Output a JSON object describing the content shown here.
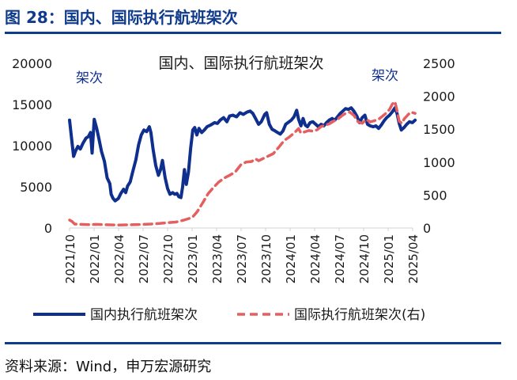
{
  "page": {
    "figure_title": "图 28：国内、国际执行航班架次",
    "source": "资料来源：Wind，申万宏源研究"
  },
  "colors": {
    "brand": "#0f3b8c",
    "domestic_series": "#0f2f8f",
    "international_series": "#e46060",
    "axis": "#d0d0d0"
  },
  "chart_data": {
    "type": "line",
    "title": "国内、国际执行航班架次",
    "left_unit_label": "架次",
    "right_unit_label": "架次",
    "x_ticks": [
      "2021/10",
      "2022/01",
      "2022/04",
      "2022/07",
      "2022/10",
      "2023/01",
      "2023/04",
      "2023/07",
      "2023/10",
      "2024/01",
      "2024/04",
      "2024/07",
      "2024/10",
      "2025/01",
      "2025/04"
    ],
    "y_left": {
      "ylim": [
        0,
        20000
      ],
      "ticks": [
        "0",
        "5000",
        "10000",
        "15000",
        "20000"
      ]
    },
    "y_right": {
      "ylim": [
        0,
        2500
      ],
      "ticks": [
        "0",
        "500",
        "1000",
        "1500",
        "2000",
        "2500"
      ]
    },
    "grid": false,
    "legend_position": "bottom",
    "series": [
      {
        "name": "国内执行航班架次",
        "axis": "left",
        "style": "solid",
        "points": [
          [
            "2021-10-01",
            13100
          ],
          [
            "2021-10-08",
            11000
          ],
          [
            "2021-10-16",
            8700
          ],
          [
            "2021-10-24",
            9400
          ],
          [
            "2021-11-01",
            9900
          ],
          [
            "2021-11-10",
            9600
          ],
          [
            "2021-11-20",
            10300
          ],
          [
            "2021-12-01",
            10900
          ],
          [
            "2021-12-10",
            11100
          ],
          [
            "2021-12-18",
            11600
          ],
          [
            "2021-12-24",
            9100
          ],
          [
            "2022-01-01",
            13200
          ],
          [
            "2022-01-05",
            12700
          ],
          [
            "2022-01-10",
            12100
          ],
          [
            "2022-01-18",
            10900
          ],
          [
            "2022-01-28",
            9300
          ],
          [
            "2022-02-08",
            8100
          ],
          [
            "2022-02-18",
            6100
          ],
          [
            "2022-02-28",
            5400
          ],
          [
            "2022-03-05",
            4100
          ],
          [
            "2022-03-12",
            3600
          ],
          [
            "2022-03-20",
            3300
          ],
          [
            "2022-04-01",
            3600
          ],
          [
            "2022-04-10",
            4200
          ],
          [
            "2022-04-20",
            4700
          ],
          [
            "2022-04-28",
            4300
          ],
          [
            "2022-05-05",
            5100
          ],
          [
            "2022-05-15",
            5600
          ],
          [
            "2022-05-25",
            6900
          ],
          [
            "2022-06-05",
            8300
          ],
          [
            "2022-06-15",
            10100
          ],
          [
            "2022-06-25",
            11300
          ],
          [
            "2022-07-05",
            11900
          ],
          [
            "2022-07-15",
            11700
          ],
          [
            "2022-07-25",
            12300
          ],
          [
            "2022-07-31",
            11600
          ],
          [
            "2022-08-08",
            9600
          ],
          [
            "2022-08-18",
            7600
          ],
          [
            "2022-08-28",
            6400
          ],
          [
            "2022-09-05",
            7100
          ],
          [
            "2022-09-12",
            8200
          ],
          [
            "2022-09-22",
            6100
          ],
          [
            "2022-10-01",
            4800
          ],
          [
            "2022-10-10",
            4100
          ],
          [
            "2022-10-20",
            4300
          ],
          [
            "2022-10-28",
            4100
          ],
          [
            "2022-11-05",
            4200
          ],
          [
            "2022-11-12",
            3800
          ],
          [
            "2022-11-20",
            3700
          ],
          [
            "2022-11-26",
            5000
          ],
          [
            "2022-12-03",
            7100
          ],
          [
            "2022-12-10",
            5300
          ],
          [
            "2022-12-18",
            6800
          ],
          [
            "2022-12-26",
            9700
          ],
          [
            "2023-01-03",
            11900
          ],
          [
            "2023-01-10",
            12200
          ],
          [
            "2023-01-18",
            11300
          ],
          [
            "2023-01-26",
            12100
          ],
          [
            "2023-02-05",
            11600
          ],
          [
            "2023-02-15",
            11900
          ],
          [
            "2023-02-25",
            12300
          ],
          [
            "2023-03-10",
            12500
          ],
          [
            "2023-03-25",
            12800
          ],
          [
            "2023-04-05",
            12700
          ],
          [
            "2023-04-15",
            13100
          ],
          [
            "2023-04-28",
            13400
          ],
          [
            "2023-05-10",
            12900
          ],
          [
            "2023-05-20",
            13600
          ],
          [
            "2023-06-01",
            13700
          ],
          [
            "2023-06-15",
            13500
          ],
          [
            "2023-06-28",
            14000
          ],
          [
            "2023-07-10",
            13800
          ],
          [
            "2023-07-25",
            14100
          ],
          [
            "2023-08-05",
            14200
          ],
          [
            "2023-08-15",
            13900
          ],
          [
            "2023-08-25",
            13300
          ],
          [
            "2023-09-05",
            12600
          ],
          [
            "2023-09-15",
            12900
          ],
          [
            "2023-09-28",
            13800
          ],
          [
            "2023-10-05",
            14000
          ],
          [
            "2023-10-15",
            12600
          ],
          [
            "2023-10-25",
            12000
          ],
          [
            "2023-11-05",
            11800
          ],
          [
            "2023-11-15",
            11600
          ],
          [
            "2023-11-25",
            11400
          ],
          [
            "2023-12-05",
            11800
          ],
          [
            "2023-12-15",
            12600
          ],
          [
            "2023-12-28",
            12900
          ],
          [
            "2024-01-05",
            13100
          ],
          [
            "2024-01-15",
            13500
          ],
          [
            "2024-01-25",
            14300
          ],
          [
            "2024-02-01",
            13200
          ],
          [
            "2024-02-10",
            12400
          ],
          [
            "2024-02-18",
            13300
          ],
          [
            "2024-02-26",
            12500
          ],
          [
            "2024-03-05",
            12300
          ],
          [
            "2024-03-15",
            12800
          ],
          [
            "2024-03-25",
            12900
          ],
          [
            "2024-04-05",
            12600
          ],
          [
            "2024-04-15",
            12300
          ],
          [
            "2024-04-25",
            12600
          ],
          [
            "2024-05-05",
            12400
          ],
          [
            "2024-05-15",
            12800
          ],
          [
            "2024-05-25",
            13100
          ],
          [
            "2024-06-05",
            13300
          ],
          [
            "2024-06-15",
            13100
          ],
          [
            "2024-06-25",
            13500
          ],
          [
            "2024-07-05",
            13900
          ],
          [
            "2024-07-15",
            14200
          ],
          [
            "2024-07-25",
            14500
          ],
          [
            "2024-08-05",
            14400
          ],
          [
            "2024-08-15",
            14600
          ],
          [
            "2024-08-25",
            14200
          ],
          [
            "2024-09-05",
            13600
          ],
          [
            "2024-09-15",
            12800
          ],
          [
            "2024-09-25",
            13400
          ],
          [
            "2024-10-05",
            13700
          ],
          [
            "2024-10-15",
            12600
          ],
          [
            "2024-10-25",
            12400
          ],
          [
            "2024-11-05",
            12300
          ],
          [
            "2024-11-15",
            12400
          ],
          [
            "2024-11-25",
            12100
          ],
          [
            "2024-12-05",
            12500
          ],
          [
            "2024-12-15",
            13000
          ],
          [
            "2024-12-25",
            13400
          ],
          [
            "2025-01-05",
            13700
          ],
          [
            "2025-01-15",
            14100
          ],
          [
            "2025-01-25",
            14600
          ],
          [
            "2025-02-02",
            13900
          ],
          [
            "2025-02-10",
            12700
          ],
          [
            "2025-02-18",
            11900
          ],
          [
            "2025-02-28",
            12200
          ],
          [
            "2025-03-10",
            12600
          ],
          [
            "2025-03-20",
            12900
          ],
          [
            "2025-03-31",
            12800
          ],
          [
            "2025-04-10",
            13100
          ]
        ]
      },
      {
        "name": "国际执行航班架次(右)",
        "axis": "right",
        "style": "dashed",
        "points": [
          [
            "2021-10-01",
            120
          ],
          [
            "2021-10-10",
            100
          ],
          [
            "2021-10-20",
            60
          ],
          [
            "2021-11-10",
            55
          ],
          [
            "2021-12-10",
            50
          ],
          [
            "2022-01-10",
            55
          ],
          [
            "2022-02-10",
            50
          ],
          [
            "2022-04-01",
            45
          ],
          [
            "2022-06-01",
            50
          ],
          [
            "2022-08-01",
            60
          ],
          [
            "2022-09-01",
            70
          ],
          [
            "2022-10-01",
            80
          ],
          [
            "2022-11-01",
            90
          ],
          [
            "2022-12-01",
            120
          ],
          [
            "2023-01-01",
            160
          ],
          [
            "2023-01-20",
            250
          ],
          [
            "2023-02-10",
            390
          ],
          [
            "2023-03-01",
            520
          ],
          [
            "2023-03-20",
            610
          ],
          [
            "2023-04-10",
            700
          ],
          [
            "2023-05-01",
            760
          ],
          [
            "2023-05-20",
            800
          ],
          [
            "2023-06-10",
            850
          ],
          [
            "2023-07-01",
            960
          ],
          [
            "2023-07-20",
            1000
          ],
          [
            "2023-08-10",
            1010
          ],
          [
            "2023-08-25",
            1050
          ],
          [
            "2023-09-05",
            1020
          ],
          [
            "2023-09-20",
            1050
          ],
          [
            "2023-10-10",
            1090
          ],
          [
            "2023-10-30",
            1130
          ],
          [
            "2023-11-20",
            1230
          ],
          [
            "2023-12-10",
            1330
          ],
          [
            "2023-12-28",
            1380
          ],
          [
            "2024-01-15",
            1440
          ],
          [
            "2024-02-01",
            1510
          ],
          [
            "2024-02-10",
            1440
          ],
          [
            "2024-02-25",
            1460
          ],
          [
            "2024-03-10",
            1480
          ],
          [
            "2024-03-25",
            1470
          ],
          [
            "2024-04-10",
            1490
          ],
          [
            "2024-04-25",
            1540
          ],
          [
            "2024-05-10",
            1560
          ],
          [
            "2024-05-25",
            1580
          ],
          [
            "2024-06-10",
            1620
          ],
          [
            "2024-06-25",
            1650
          ],
          [
            "2024-07-10",
            1700
          ],
          [
            "2024-07-25",
            1740
          ],
          [
            "2024-08-10",
            1760
          ],
          [
            "2024-08-25",
            1710
          ],
          [
            "2024-09-10",
            1610
          ],
          [
            "2024-09-25",
            1590
          ],
          [
            "2024-10-10",
            1650
          ],
          [
            "2024-10-25",
            1610
          ],
          [
            "2024-11-10",
            1630
          ],
          [
            "2024-11-25",
            1650
          ],
          [
            "2024-12-10",
            1700
          ],
          [
            "2024-12-25",
            1750
          ],
          [
            "2025-01-05",
            1800
          ],
          [
            "2025-01-15",
            1880
          ],
          [
            "2025-01-25",
            1920
          ],
          [
            "2025-02-02",
            1780
          ],
          [
            "2025-02-10",
            1620
          ],
          [
            "2025-02-20",
            1590
          ],
          [
            "2025-03-01",
            1660
          ],
          [
            "2025-03-15",
            1720
          ],
          [
            "2025-03-25",
            1760
          ],
          [
            "2025-04-10",
            1740
          ]
        ]
      }
    ]
  }
}
